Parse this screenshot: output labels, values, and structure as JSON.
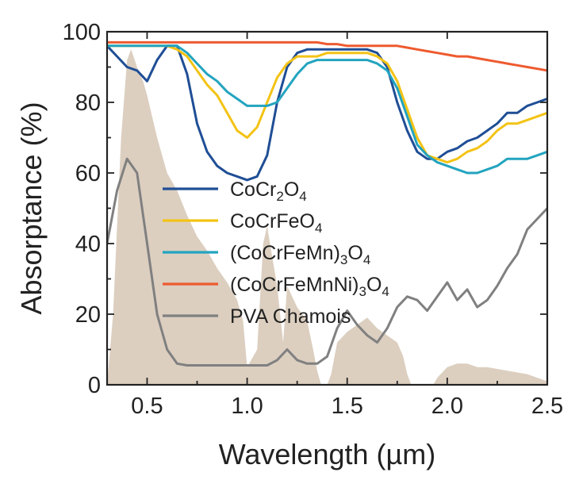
{
  "chart_data": {
    "type": "line",
    "title": "",
    "xlabel": "Wavelength (µm)",
    "ylabel": "Absorptance (%)",
    "xlim": [
      0.3,
      2.5
    ],
    "ylim": [
      0,
      100
    ],
    "xticks": [
      0.5,
      1.0,
      1.5,
      2.0,
      2.5
    ],
    "xtick_labels": [
      "0.5",
      "1.0",
      "1.5",
      "2.0",
      "2.5"
    ],
    "yticks": [
      0,
      20,
      40,
      60,
      80,
      100
    ],
    "ytick_labels": [
      "0",
      "20",
      "40",
      "60",
      "80",
      "100"
    ],
    "grid": false,
    "legend_position": "lower-center",
    "background_spectrum": {
      "color": "#dccfc0",
      "x": [
        0.3,
        0.33,
        0.35,
        0.37,
        0.4,
        0.42,
        0.45,
        0.48,
        0.5,
        0.55,
        0.6,
        0.65,
        0.7,
        0.75,
        0.8,
        0.85,
        0.9,
        0.93,
        0.95,
        0.98,
        1.0,
        1.05,
        1.08,
        1.1,
        1.12,
        1.15,
        1.18,
        1.2,
        1.25,
        1.3,
        1.33,
        1.35,
        1.37,
        1.38,
        1.4,
        1.42,
        1.45,
        1.5,
        1.55,
        1.6,
        1.65,
        1.7,
        1.75,
        1.78,
        1.8,
        1.82,
        1.85,
        1.9,
        1.93,
        1.95,
        2.0,
        2.05,
        2.1,
        2.15,
        2.2,
        2.3,
        2.4,
        2.5
      ],
      "y": [
        0,
        20,
        45,
        70,
        92,
        95,
        90,
        86,
        82,
        70,
        60,
        55,
        48,
        42,
        38,
        33,
        29,
        26,
        24,
        18,
        5,
        10,
        40,
        45,
        38,
        28,
        12,
        28,
        22,
        18,
        10,
        4,
        0,
        0,
        0,
        3,
        12,
        15,
        17,
        19,
        16,
        14,
        12,
        8,
        3,
        0,
        0,
        0,
        0,
        2,
        5,
        6,
        6,
        5,
        5,
        4,
        3,
        1
      ]
    },
    "x": [
      0.3,
      0.35,
      0.4,
      0.45,
      0.5,
      0.55,
      0.6,
      0.65,
      0.7,
      0.75,
      0.8,
      0.85,
      0.9,
      0.95,
      1.0,
      1.05,
      1.1,
      1.15,
      1.2,
      1.25,
      1.3,
      1.35,
      1.4,
      1.45,
      1.5,
      1.55,
      1.6,
      1.65,
      1.7,
      1.75,
      1.8,
      1.85,
      1.9,
      1.95,
      2.0,
      2.05,
      2.1,
      2.15,
      2.2,
      2.25,
      2.3,
      2.35,
      2.4,
      2.45,
      2.5
    ],
    "series": [
      {
        "name": "CoCr",
        "name_sub": "2",
        "name_tail": "O",
        "name_sub2": "4",
        "color": "#1f4e95",
        "values": [
          96,
          93,
          90,
          89,
          86,
          92,
          96,
          96,
          88,
          74,
          66,
          62,
          60,
          59,
          58,
          59,
          65,
          80,
          90,
          94,
          95,
          95,
          95,
          95,
          95,
          95,
          95,
          94,
          90,
          80,
          72,
          66,
          64,
          64,
          66,
          67,
          69,
          70,
          72,
          74,
          77,
          77,
          79,
          80,
          81
        ]
      },
      {
        "name": "CoCrFeO",
        "name_sub": "4",
        "name_tail": "",
        "name_sub2": "",
        "color": "#f3c315",
        "values": [
          96,
          96,
          96,
          96,
          96,
          96,
          96,
          95,
          93,
          89,
          85,
          82,
          77,
          72,
          70,
          73,
          80,
          87,
          91,
          93,
          93,
          93,
          94,
          94,
          94,
          94,
          94,
          93,
          91,
          86,
          78,
          70,
          65,
          64,
          63,
          64,
          66,
          67,
          69,
          72,
          74,
          74,
          75,
          76,
          77
        ]
      },
      {
        "name": "(CoCrFeMn)",
        "name_sub": "3",
        "name_tail": "O",
        "name_sub2": "4",
        "color": "#23a4bf",
        "values": [
          96,
          96,
          96,
          96,
          96,
          96,
          96,
          96,
          94,
          91,
          88,
          86,
          83,
          81,
          79,
          79,
          79,
          80,
          84,
          88,
          91,
          92,
          92,
          92,
          92,
          92,
          92,
          91,
          89,
          84,
          76,
          68,
          65,
          63,
          62,
          61,
          60,
          60,
          61,
          62,
          64,
          64,
          64,
          65,
          66
        ]
      },
      {
        "name": "(CoCrFeMnNi)",
        "name_sub": "3",
        "name_tail": "O",
        "name_sub2": "4",
        "color": "#ee5a2f",
        "values": [
          97,
          97,
          97,
          97,
          97,
          97,
          97,
          97,
          97,
          97,
          97,
          97,
          97,
          97,
          97,
          97,
          97,
          97,
          97,
          97,
          97,
          97,
          96.5,
          96.5,
          96,
          96,
          96,
          96,
          96,
          96,
          95.5,
          95,
          94.5,
          94,
          93.5,
          93,
          93,
          92.5,
          92,
          91.5,
          91,
          90.5,
          90,
          89.5,
          89
        ]
      },
      {
        "name": "PVA Chamois",
        "name_sub": "",
        "name_tail": "",
        "name_sub2": "",
        "color": "#808080",
        "values": [
          40,
          55,
          64,
          60,
          40,
          20,
          10,
          6,
          5.5,
          5.5,
          5.5,
          5.5,
          5.5,
          5.5,
          5.5,
          5.5,
          5.5,
          7,
          10,
          7,
          6,
          6,
          8,
          16,
          21,
          17,
          14,
          12,
          16,
          22,
          25,
          24,
          21,
          25,
          29,
          24,
          27,
          22,
          24,
          28,
          33,
          37,
          44,
          47,
          50
        ]
      }
    ]
  }
}
